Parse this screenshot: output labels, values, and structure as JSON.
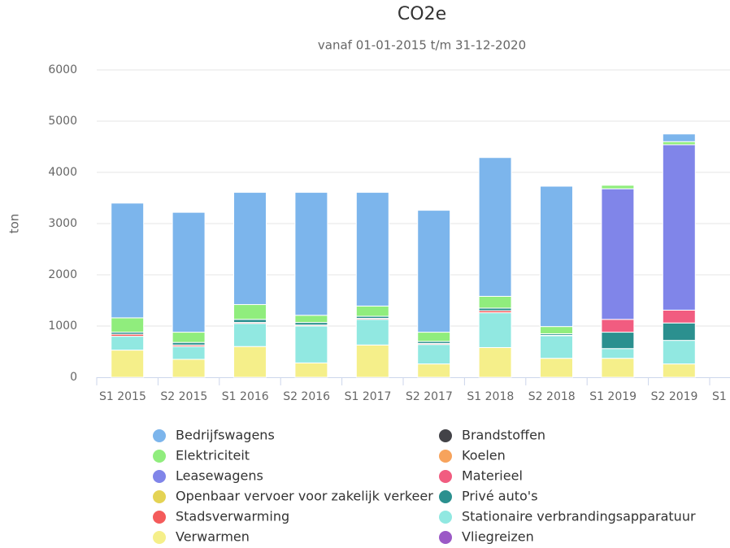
{
  "chart_data": {
    "type": "stacked_bar",
    "title": "CO2e",
    "subtitle": "vanaf 01-01-2015 t/m 31-12-2020",
    "y_label": "ton",
    "categories": [
      "S1 2015",
      "S2 2015",
      "S1 2016",
      "S2 2016",
      "S1 2017",
      "S2 2017",
      "S1 2018",
      "S2 2018",
      "S1 2019",
      "S2 2019",
      "S1"
    ],
    "series": [
      {
        "name": "Bedrijfswagens",
        "color": "#7cb5ec",
        "values": [
          2240,
          2340,
          2190,
          2400,
          2220,
          2380,
          2710,
          2740,
          10,
          150,
          null
        ]
      },
      {
        "name": "Brandstoffen",
        "color": "#434348",
        "values": [
          0,
          0,
          0,
          0,
          0,
          0,
          0,
          0,
          0,
          0,
          null
        ]
      },
      {
        "name": "Elektriciteit",
        "color": "#90ed7d",
        "values": [
          280,
          200,
          290,
          140,
          200,
          180,
          230,
          140,
          70,
          60,
          null
        ]
      },
      {
        "name": "Koelen",
        "color": "#f7a35c",
        "values": [
          0,
          0,
          0,
          0,
          0,
          0,
          0,
          0,
          0,
          0,
          null
        ]
      },
      {
        "name": "Leasewagens",
        "color": "#8085e9",
        "values": [
          0,
          0,
          0,
          0,
          0,
          0,
          0,
          0,
          2550,
          3230,
          null
        ]
      },
      {
        "name": "Materieel",
        "color": "#f15c80",
        "values": [
          0,
          0,
          0,
          0,
          0,
          0,
          0,
          0,
          250,
          250,
          null
        ]
      },
      {
        "name": "Openbaar vervoer voor zakelijk verkeer",
        "color": "#e4d354",
        "values": [
          0,
          0,
          0,
          0,
          0,
          0,
          0,
          0,
          0,
          0,
          null
        ]
      },
      {
        "name": "Privé auto's",
        "color": "#2b908f",
        "values": [
          40,
          50,
          60,
          50,
          40,
          40,
          50,
          30,
          320,
          340,
          null
        ]
      },
      {
        "name": "Stadsverwarming",
        "color": "#f45b5b",
        "values": [
          40,
          30,
          20,
          20,
          20,
          20,
          40,
          10,
          0,
          0,
          null
        ]
      },
      {
        "name": "Stationaire verbrandingsapparatuur",
        "color": "#91e8e1",
        "values": [
          270,
          250,
          450,
          720,
          500,
          380,
          680,
          440,
          190,
          460,
          null
        ]
      },
      {
        "name": "Verwarmen",
        "color": "#f5ef8a",
        "values": [
          530,
          350,
          600,
          280,
          630,
          260,
          580,
          370,
          370,
          260,
          null
        ]
      },
      {
        "name": "Vliegreizen",
        "color": "#9b59c6",
        "values": [
          0,
          0,
          0,
          0,
          0,
          0,
          0,
          0,
          0,
          0,
          null
        ]
      }
    ],
    "ylim": [
      0,
      6000
    ],
    "yticks": [
      0,
      1000,
      2000,
      3000,
      4000,
      5000,
      6000
    ],
    "grid": true
  }
}
